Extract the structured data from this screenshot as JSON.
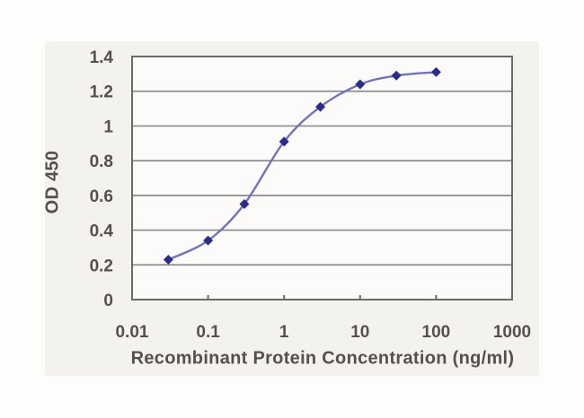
{
  "chart_data": {
    "type": "line",
    "title": "",
    "xlabel": "Recombinant Protein Concentration (ng/ml)",
    "ylabel": "OD 450",
    "x_scale": "log",
    "series": [
      {
        "name": "OD 450",
        "x": [
          0.03,
          0.1,
          0.3,
          1,
          3,
          10,
          30,
          100
        ],
        "y": [
          0.23,
          0.34,
          0.55,
          0.91,
          1.11,
          1.24,
          1.29,
          1.31
        ],
        "marker": "diamond",
        "line_style": "smooth"
      }
    ],
    "xlim": [
      0.01,
      1000
    ],
    "ylim": [
      0,
      1.4
    ],
    "x_ticks": [
      0.01,
      0.1,
      1,
      10,
      100,
      1000
    ],
    "x_tick_labels": [
      "0.01",
      "0.1",
      "1",
      "10",
      "100",
      "1000"
    ],
    "y_ticks": [
      0,
      0.2,
      0.4,
      0.6,
      0.8,
      1,
      1.2,
      1.4
    ],
    "y_tick_labels": [
      "0",
      "0.2",
      "0.4",
      "0.6",
      "0.8",
      "1",
      "1.2",
      "1.4"
    ],
    "grid": "horizontal",
    "legend": "none"
  },
  "style": {
    "line_color": "#7173b5",
    "marker_color": "#2b2b88",
    "grid_color": "#8c8c8c",
    "axis_color": "#6a6a6a",
    "text_color": "#56504d",
    "panel_bg": "#f4f2ef",
    "plot_bg": "#fcfbf9",
    "page_bg": "#fdfdfc"
  }
}
